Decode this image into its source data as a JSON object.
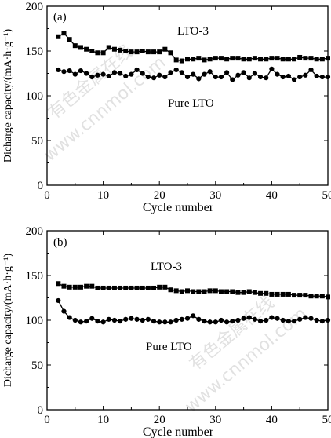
{
  "watermark": {
    "text": "有色金属在线",
    "url": "www.cnnmol.com"
  },
  "chart_data": [
    {
      "type": "line",
      "panel_label": "(a)",
      "xlabel": "Cycle number",
      "ylabel": "Dicharge capacity/(mA·h·g⁻¹)",
      "xlim": [
        0,
        50
      ],
      "ylim": [
        0,
        200
      ],
      "xticks": [
        0,
        10,
        20,
        30,
        40,
        50
      ],
      "yticks": [
        0,
        50,
        100,
        150,
        200
      ],
      "grid": false,
      "series": [
        {
          "name": "LTO-3",
          "marker": "square",
          "color": "#000000",
          "x": [
            2,
            3,
            4,
            5,
            6,
            7,
            8,
            9,
            10,
            11,
            12,
            13,
            14,
            15,
            16,
            17,
            18,
            19,
            20,
            21,
            22,
            23,
            24,
            25,
            26,
            27,
            28,
            29,
            30,
            31,
            32,
            33,
            34,
            35,
            36,
            37,
            38,
            39,
            40,
            41,
            42,
            43,
            44,
            45,
            46,
            47,
            48,
            49,
            50
          ],
          "y": [
            166,
            170,
            163,
            156,
            154,
            152,
            150,
            148,
            148,
            154,
            152,
            151,
            150,
            149,
            149,
            150,
            149,
            149,
            149,
            152,
            148,
            140,
            139,
            141,
            141,
            142,
            140,
            141,
            142,
            142,
            141,
            142,
            142,
            141,
            141,
            142,
            141,
            141,
            142,
            142,
            141,
            141,
            141,
            143,
            142,
            142,
            141,
            141,
            142
          ]
        },
        {
          "name": "Pure LTO",
          "marker": "circle",
          "color": "#000000",
          "x": [
            2,
            3,
            4,
            5,
            6,
            7,
            8,
            9,
            10,
            11,
            12,
            13,
            14,
            15,
            16,
            17,
            18,
            19,
            20,
            21,
            22,
            23,
            24,
            25,
            26,
            27,
            28,
            29,
            30,
            31,
            32,
            33,
            34,
            35,
            36,
            37,
            38,
            39,
            40,
            41,
            42,
            43,
            44,
            45,
            46,
            47,
            48,
            49,
            50
          ],
          "y": [
            129,
            127,
            128,
            124,
            128,
            125,
            121,
            123,
            124,
            122,
            126,
            125,
            122,
            124,
            129,
            125,
            121,
            120,
            123,
            121,
            126,
            129,
            126,
            121,
            124,
            119,
            124,
            127,
            121,
            121,
            126,
            118,
            123,
            126,
            120,
            125,
            121,
            120,
            130,
            124,
            121,
            122,
            118,
            121,
            123,
            129,
            122,
            121,
            121
          ]
        }
      ]
    },
    {
      "type": "line",
      "panel_label": "(b)",
      "xlabel": "Cycle number",
      "ylabel": "Dicharge capacity/(mA·h·g⁻¹)",
      "xlim": [
        0,
        50
      ],
      "ylim": [
        0,
        200
      ],
      "xticks": [
        0,
        10,
        20,
        30,
        40,
        50
      ],
      "yticks": [
        0,
        50,
        100,
        150,
        200
      ],
      "grid": false,
      "series": [
        {
          "name": "LTO-3",
          "marker": "square",
          "color": "#000000",
          "x": [
            2,
            3,
            4,
            5,
            6,
            7,
            8,
            9,
            10,
            11,
            12,
            13,
            14,
            15,
            16,
            17,
            18,
            19,
            20,
            21,
            22,
            23,
            24,
            25,
            26,
            27,
            28,
            29,
            30,
            31,
            32,
            33,
            34,
            35,
            36,
            37,
            38,
            39,
            40,
            41,
            42,
            43,
            44,
            45,
            46,
            47,
            48,
            49,
            50
          ],
          "y": [
            141,
            138,
            137,
            137,
            137,
            138,
            138,
            136,
            136,
            136,
            136,
            136,
            136,
            136,
            136,
            136,
            136,
            136,
            137,
            137,
            134,
            133,
            132,
            133,
            132,
            132,
            132,
            133,
            133,
            132,
            132,
            132,
            131,
            131,
            132,
            131,
            130,
            130,
            129,
            129,
            129,
            129,
            128,
            128,
            128,
            127,
            127,
            127,
            126
          ]
        },
        {
          "name": "Pure LTO",
          "marker": "circle",
          "color": "#000000",
          "x": [
            2,
            3,
            4,
            5,
            6,
            7,
            8,
            9,
            10,
            11,
            12,
            13,
            14,
            15,
            16,
            17,
            18,
            19,
            20,
            21,
            22,
            23,
            24,
            25,
            26,
            27,
            28,
            29,
            30,
            31,
            32,
            33,
            34,
            35,
            36,
            37,
            38,
            39,
            40,
            41,
            42,
            43,
            44,
            45,
            46,
            47,
            48,
            49,
            50
          ],
          "y": [
            122,
            110,
            103,
            100,
            98,
            99,
            102,
            99,
            98,
            101,
            100,
            99,
            101,
            102,
            101,
            100,
            101,
            99,
            98,
            98,
            98,
            100,
            101,
            102,
            105,
            101,
            99,
            98,
            98,
            100,
            98,
            99,
            100,
            102,
            103,
            101,
            99,
            100,
            103,
            102,
            100,
            99,
            99,
            101,
            103,
            102,
            100,
            99,
            100
          ]
        }
      ]
    }
  ]
}
